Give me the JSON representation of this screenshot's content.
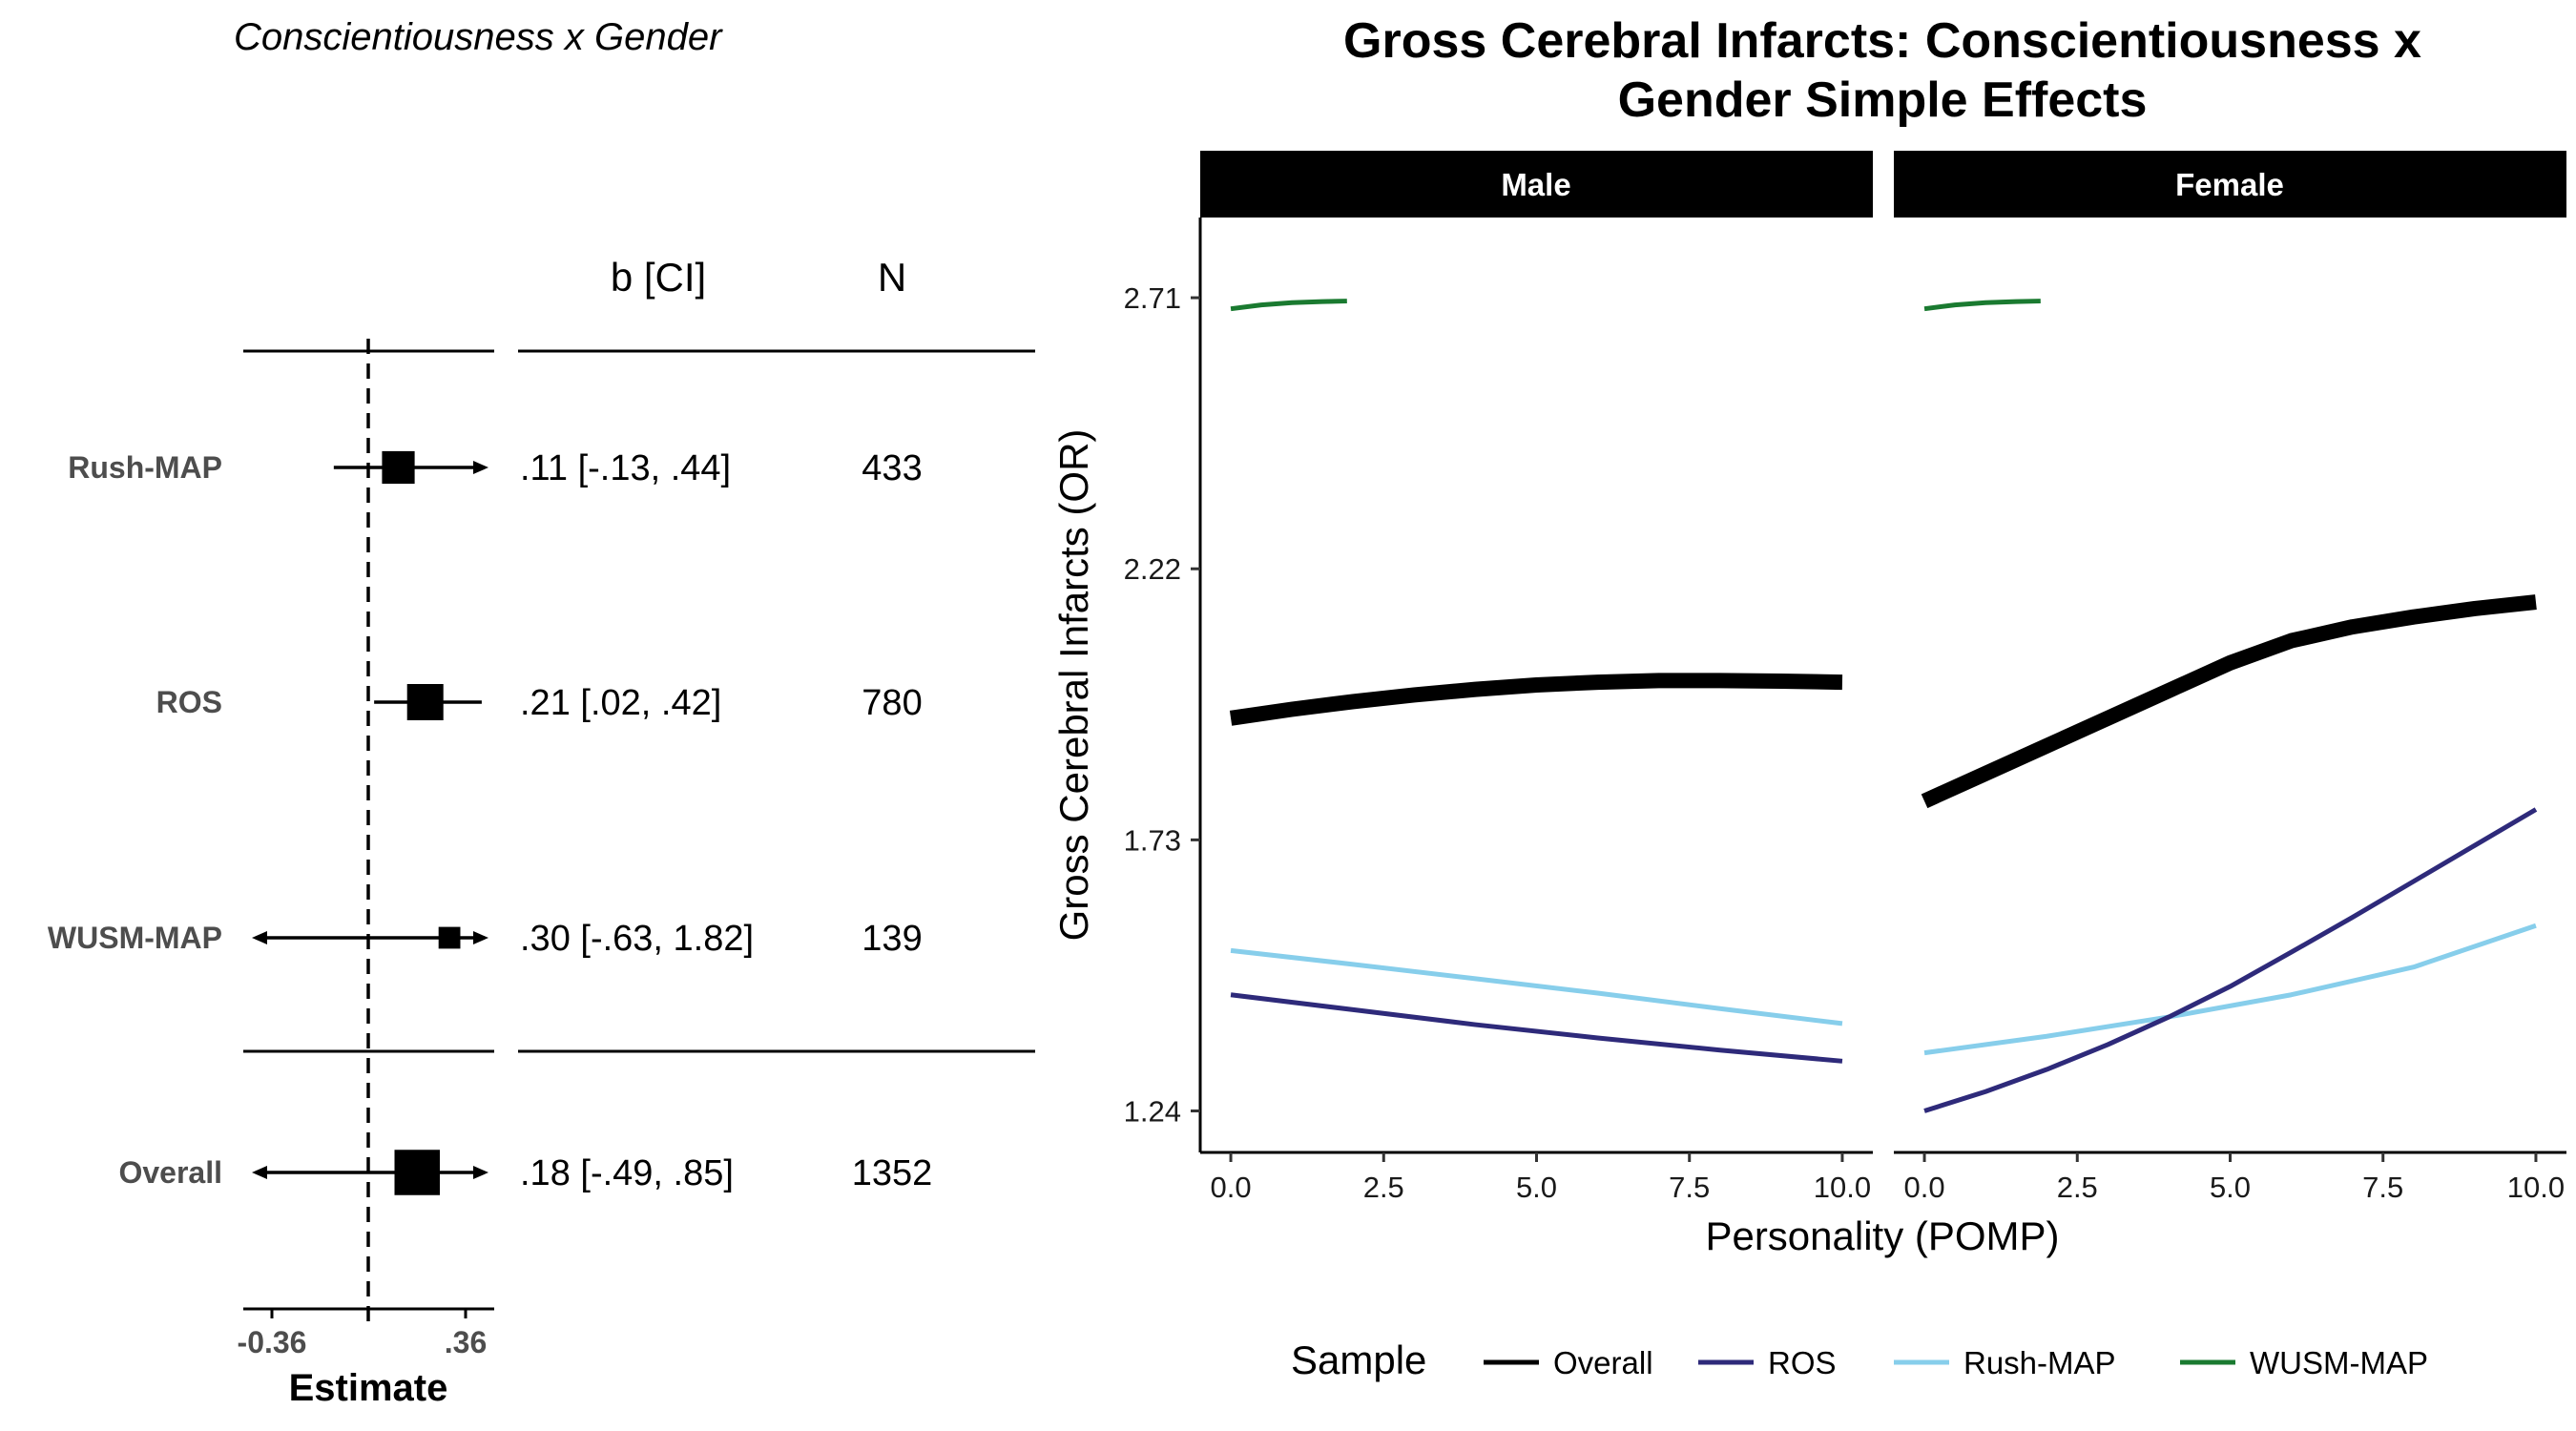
{
  "forest_plot": {
    "title": "Conscientiousness x Gender",
    "column_headers": {
      "estimate_ci": "b [CI]",
      "n": "N"
    },
    "x_axis": {
      "title": "Estimate",
      "tick_labels": [
        "-0.36",
        ".36"
      ],
      "range": [
        -0.36,
        0.36
      ],
      "reference_line": 0
    },
    "rows": [
      {
        "label": "Rush-MAP",
        "estimate": 0.11,
        "lower": -0.13,
        "upper": 0.44,
        "ci_text": ".11 [-.13, .44]",
        "n": "433",
        "weight": 0.9
      },
      {
        "label": "ROS",
        "estimate": 0.21,
        "lower": 0.02,
        "upper": 0.42,
        "ci_text": ".21 [.02, .42]",
        "n": "780",
        "weight": 1.0
      },
      {
        "label": "WUSM-MAP",
        "estimate": 0.3,
        "lower": -0.63,
        "upper": 1.82,
        "ci_text": ".30 [-.63, 1.82]",
        "n": "139",
        "weight": 0.6
      },
      {
        "label": "Overall",
        "estimate": 0.18,
        "lower": -0.49,
        "upper": 0.85,
        "ci_text": ".18 [-.49, .85]",
        "n": "1352",
        "weight": 1.25
      }
    ]
  },
  "chart_data": {
    "type": "line",
    "title": "Gross Cerebral Infarcts: Conscientiousness x Gender Simple Effects",
    "title_lines": [
      "Gross Cerebral Infarcts: Conscientiousness x",
      "Gender Simple Effects"
    ],
    "xlabel": "Personality (POMP)",
    "ylabel": "Gross Cerebral Infarcts (OR)",
    "xlim": [
      -0.5,
      10.5
    ],
    "ylim": [
      1.165,
      2.855
    ],
    "x_ticks": [
      0,
      2.5,
      5,
      7.5,
      10
    ],
    "x_tick_labels": [
      "0.0",
      "2.5",
      "5.0",
      "7.5",
      "10.0"
    ],
    "y_ticks": [
      1.24,
      1.73,
      2.22,
      2.71
    ],
    "y_tick_labels": [
      "1.24",
      "1.73",
      "2.22",
      "2.71"
    ],
    "grid": false,
    "legend": {
      "title": "Sample",
      "position": "bottom"
    },
    "series_styles": [
      {
        "name": "Overall",
        "color": "#000000",
        "width": "thick"
      },
      {
        "name": "ROS",
        "color": "#2e2a7a",
        "width": "normal"
      },
      {
        "name": "Rush-MAP",
        "color": "#87ceeb",
        "width": "normal"
      },
      {
        "name": "WUSM-MAP",
        "color": "#1a7a30",
        "width": "normal"
      }
    ],
    "panels": [
      {
        "label": "Male",
        "series": [
          {
            "name": "Overall",
            "x": [
              0,
              1,
              2,
              3,
              4,
              5,
              6,
              7,
              8,
              9,
              10
            ],
            "y": [
              1.95,
              1.966,
              1.98,
              1.992,
              2.002,
              2.01,
              2.015,
              2.018,
              2.018,
              2.017,
              2.015
            ]
          },
          {
            "name": "ROS",
            "x": [
              0,
              2,
              4,
              6,
              8,
              10
            ],
            "y": [
              1.45,
              1.423,
              1.396,
              1.372,
              1.35,
              1.33
            ]
          },
          {
            "name": "Rush-MAP",
            "x": [
              0,
              2,
              4,
              6,
              8,
              10
            ],
            "y": [
              1.53,
              1.505,
              1.479,
              1.453,
              1.425,
              1.398
            ]
          },
          {
            "name": "WUSM-MAP",
            "x": [
              0,
              0.5,
              1,
              1.5,
              1.9
            ],
            "y": [
              2.69,
              2.697,
              2.701,
              2.703,
              2.704
            ]
          }
        ]
      },
      {
        "label": "Female",
        "series": [
          {
            "name": "Overall",
            "x": [
              0,
              1,
              2,
              3,
              4,
              5,
              6,
              7,
              8,
              9,
              10
            ],
            "y": [
              1.8,
              1.85,
              1.9,
              1.95,
              2.0,
              2.05,
              2.09,
              2.115,
              2.133,
              2.148,
              2.16
            ]
          },
          {
            "name": "ROS",
            "x": [
              0,
              1,
              2,
              3,
              4,
              5,
              6,
              7,
              8,
              9,
              10
            ],
            "y": [
              1.24,
              1.275,
              1.315,
              1.36,
              1.41,
              1.465,
              1.527,
              1.59,
              1.655,
              1.72,
              1.785
            ]
          },
          {
            "name": "Rush-MAP",
            "x": [
              0,
              2,
              4,
              6,
              8,
              10
            ],
            "y": [
              1.345,
              1.375,
              1.41,
              1.45,
              1.5,
              1.575
            ]
          },
          {
            "name": "WUSM-MAP",
            "x": [
              0,
              0.5,
              1,
              1.5,
              1.9
            ],
            "y": [
              2.69,
              2.697,
              2.701,
              2.703,
              2.704
            ]
          }
        ]
      }
    ]
  }
}
